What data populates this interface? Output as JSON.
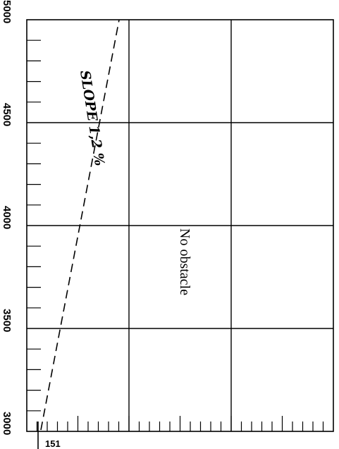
{
  "chart_data": {
    "type": "line",
    "title": "",
    "xlabel": "",
    "ylabel": "",
    "ylim": [
      3000,
      5000
    ],
    "y_ticks": [
      "5000",
      "4500",
      "4000",
      "3500",
      "3000"
    ],
    "x_tick_label": "151",
    "grid": true,
    "series": [
      {
        "values_y": [
          3000,
          5000
        ]
      }
    ],
    "annotations": {
      "slope": "SLOPE 1,2 %",
      "obstacle": "No obstacle"
    }
  }
}
